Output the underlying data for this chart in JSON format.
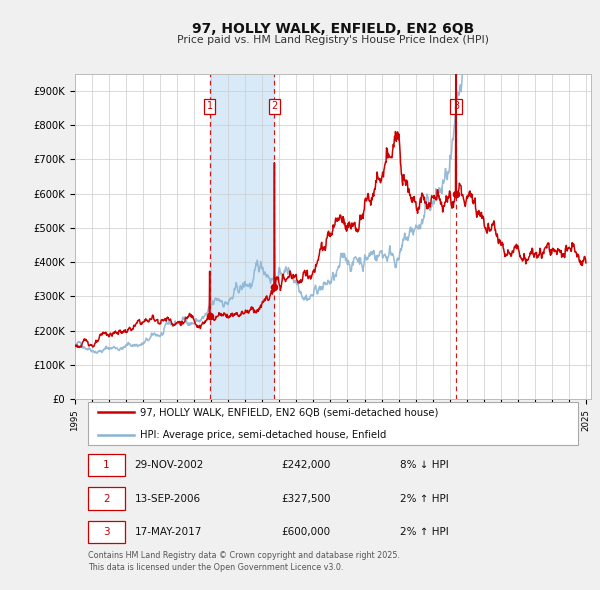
{
  "title": "97, HOLLY WALK, ENFIELD, EN2 6QB",
  "subtitle": "Price paid vs. HM Land Registry's House Price Index (HPI)",
  "year_start": 1995,
  "year_end": 2025,
  "ylim": [
    0,
    950000
  ],
  "yticks": [
    0,
    100000,
    200000,
    300000,
    400000,
    500000,
    600000,
    700000,
    800000,
    900000
  ],
  "ytick_labels": [
    "£0",
    "£100K",
    "£200K",
    "£300K",
    "£400K",
    "£500K",
    "£600K",
    "£700K",
    "£800K",
    "£900K"
  ],
  "hpi_color": "#8ab4d4",
  "price_color": "#cc0000",
  "sale_dot_color": "#cc0000",
  "vline_color": "#cc0000",
  "shade_color": "#d8eaf8",
  "grid_color": "#cccccc",
  "bg_color": "#f0f0f0",
  "plot_bg": "#ffffff",
  "legend_label_price": "97, HOLLY WALK, ENFIELD, EN2 6QB (semi-detached house)",
  "legend_label_hpi": "HPI: Average price, semi-detached house, Enfield",
  "sales": [
    {
      "num": 1,
      "date_label": "29-NOV-2002",
      "price_label": "£242,000",
      "pct_label": "8% ↓ HPI",
      "year": 2002.91,
      "price": 242000
    },
    {
      "num": 2,
      "date_label": "13-SEP-2006",
      "price_label": "£327,500",
      "pct_label": "2% ↑ HPI",
      "year": 2006.71,
      "price": 327500
    },
    {
      "num": 3,
      "date_label": "17-MAY-2017",
      "price_label": "£600,000",
      "pct_label": "2% ↑ HPI",
      "year": 2017.37,
      "price": 600000
    }
  ],
  "footer": "Contains HM Land Registry data © Crown copyright and database right 2025.\nThis data is licensed under the Open Government Licence v3.0.",
  "hpi_seed": 42,
  "price_seed": 123,
  "noise_hpi": 0.018,
  "noise_price": 0.016
}
